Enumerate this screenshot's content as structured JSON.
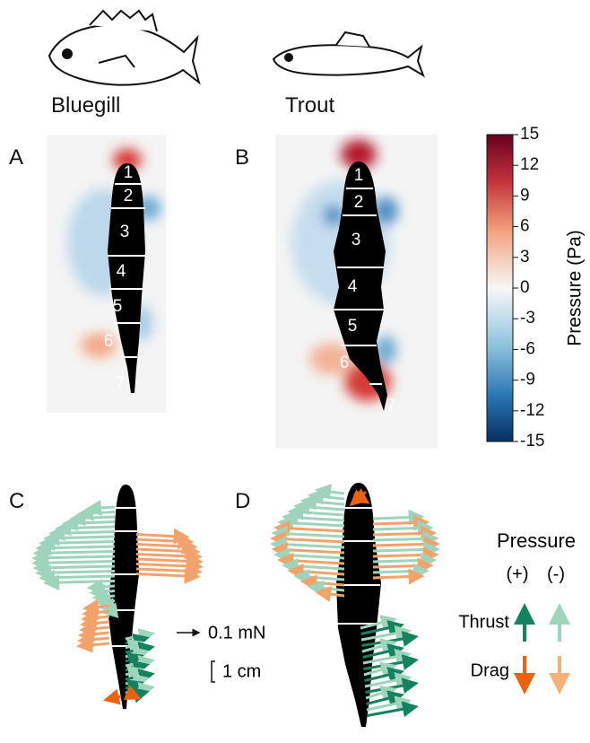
{
  "fish": [
    "Bluegill",
    "Trout"
  ],
  "panels": [
    "A",
    "B",
    "C",
    "D"
  ],
  "segments_a": [
    "1",
    "2",
    "3",
    "4",
    "5",
    "6",
    "7"
  ],
  "segments_b": [
    "1",
    "2",
    "3",
    "4",
    "5",
    "6",
    "7"
  ],
  "colorbar": {
    "label": "Pressure (Pa)",
    "ticks": [
      "15",
      "12",
      "9",
      "6",
      "3",
      "0",
      "-3",
      "-6",
      "-9",
      "-12",
      "-15"
    ]
  },
  "scale": {
    "force": "0.1 mN",
    "length": "1 cm"
  },
  "legend": {
    "title": "Pressure",
    "positive": "(+)",
    "negative": "(-)",
    "thrust": "Thrust",
    "drag": "Drag"
  }
}
